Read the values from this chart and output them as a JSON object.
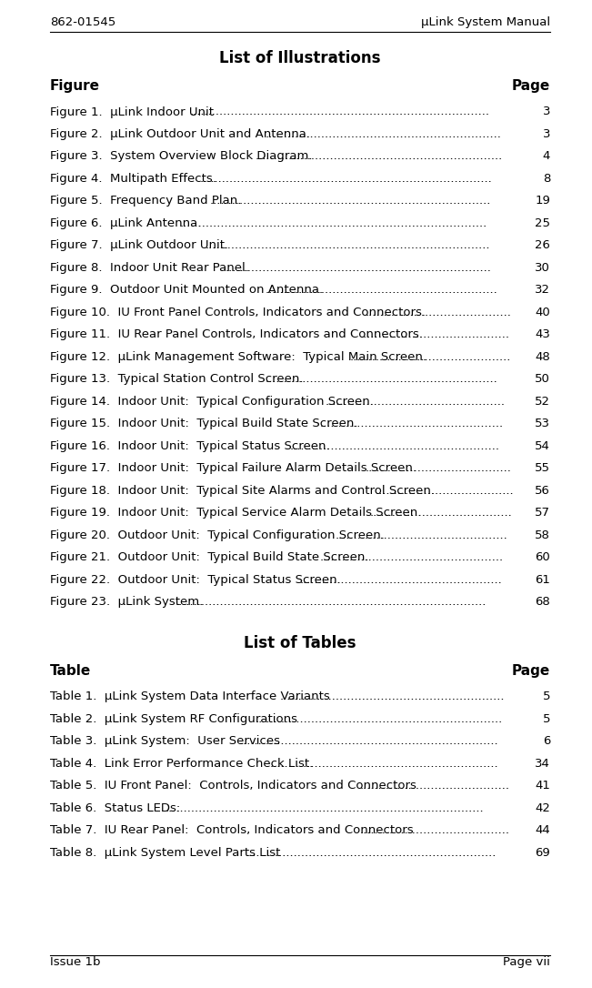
{
  "header_left": "862-01545",
  "header_right": "μLink System Manual",
  "footer_left": "Issue 1b",
  "footer_right": "Page vii",
  "illustrations_title": "List of Illustrations",
  "figures_col_left": "Figure",
  "figures_col_right": "Page",
  "figures": [
    [
      "Figure 1.  ",
      "μLink Indoor Unit",
      "3"
    ],
    [
      "Figure 2.  ",
      "μLink Outdoor Unit and Antenna. ",
      "3"
    ],
    [
      "Figure 3.  ",
      "System Overview Block Diagram.",
      "4"
    ],
    [
      "Figure 4.  ",
      "Multipath Effects. ",
      "8"
    ],
    [
      "Figure 5.  ",
      "Frequency Band Plan. ",
      "19"
    ],
    [
      "Figure 6.  ",
      "μLink Antenna. ",
      "25"
    ],
    [
      "Figure 7.  ",
      "μLink Outdoor Unit. ",
      "26"
    ],
    [
      "Figure 8.  ",
      "Indoor Unit Rear Panel. ",
      "30"
    ],
    [
      "Figure 9.  ",
      "Outdoor Unit Mounted on Antenna.",
      "32"
    ],
    [
      "Figure 10.  ",
      "IU Front Panel Controls, Indicators and Connectors.",
      "40"
    ],
    [
      "Figure 11.  ",
      "IU Rear Panel Controls, Indicators and Connectors.",
      "43"
    ],
    [
      "Figure 12.  ",
      "μLink Management Software:  Typical Main Screen.",
      "48"
    ],
    [
      "Figure 13.  ",
      "Typical Station Control Screen.",
      "50"
    ],
    [
      "Figure 14.  ",
      "Indoor Unit:  Typical Configuration Screen.",
      "52"
    ],
    [
      "Figure 15.  ",
      "Indoor Unit:  Typical Build State Screen. ",
      "53"
    ],
    [
      "Figure 16.  ",
      "Indoor Unit:  Typical Status Screen.",
      "54"
    ],
    [
      "Figure 17.  ",
      "Indoor Unit:  Typical Failure Alarm Details Screen.",
      "55"
    ],
    [
      "Figure 18.  ",
      "Indoor Unit:  Typical Site Alarms and Control Screen.",
      "56"
    ],
    [
      "Figure 19.  ",
      "Indoor Unit:  Typical Service Alarm Details Screen. ",
      "57"
    ],
    [
      "Figure 20.  ",
      "Outdoor Unit:  Typical Configuration Screen. ",
      "58"
    ],
    [
      "Figure 21.  ",
      "Outdoor Unit:  Typical Build State Screen.",
      "60"
    ],
    [
      "Figure 22.  ",
      "Outdoor Unit:  Typical Status Screen. ",
      "61"
    ],
    [
      "Figure 23.  ",
      "μLink System.",
      "68"
    ]
  ],
  "tables_title": "List of Tables",
  "tables_col_left": "Table",
  "tables_col_right": "Page",
  "tables": [
    [
      "Table 1.  ",
      "μLink System Data Interface Variants",
      "5"
    ],
    [
      "Table 2.  ",
      "μLink System RF Configurations ",
      "5"
    ],
    [
      "Table 3.  ",
      "μLink System:  User Services",
      "6"
    ],
    [
      "Table 4.  ",
      "Link Error Performance Check List.",
      "34"
    ],
    [
      "Table 5.  ",
      "IU Front Panel:  Controls, Indicators and Connectors",
      "41"
    ],
    [
      "Table 6.  ",
      "Status LEDs: ",
      "42"
    ],
    [
      "Table 7.  ",
      "IU Rear Panel:  Controls, Indicators and Connectors ",
      "44"
    ],
    [
      "Table 8.  ",
      "μLink System Level Parts List",
      "69"
    ]
  ],
  "bg_color": "#ffffff",
  "text_color": "#000000",
  "header_fontsize": 9.5,
  "title_fontsize": 12,
  "col_header_fontsize": 11,
  "body_fontsize": 9.5
}
